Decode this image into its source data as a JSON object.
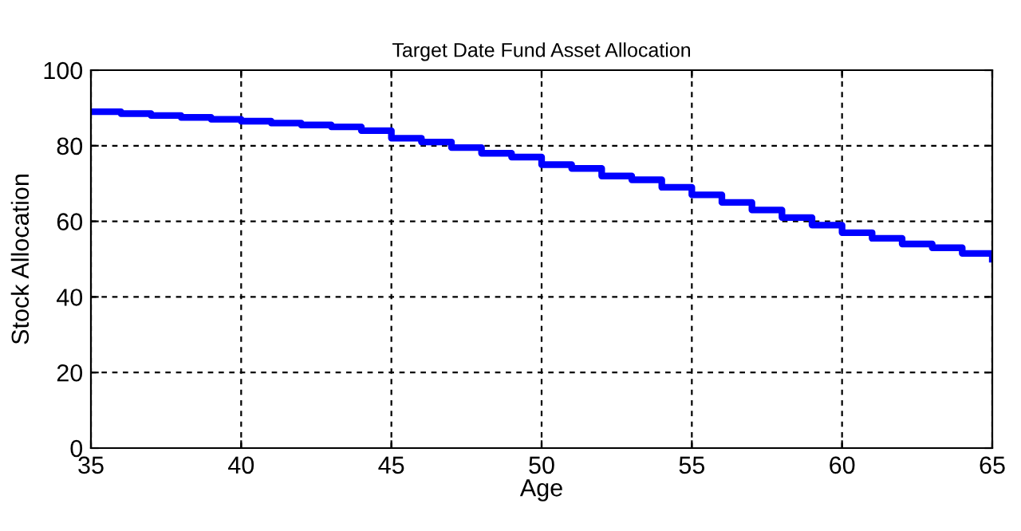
{
  "chart_data": {
    "type": "step",
    "title": "Target Date Fund Asset Allocation",
    "xlabel": "Age",
    "ylabel": "Stock Allocation",
    "x": [
      35,
      36,
      37,
      38,
      39,
      40,
      41,
      42,
      43,
      44,
      45,
      46,
      47,
      48,
      49,
      50,
      51,
      52,
      53,
      54,
      55,
      56,
      57,
      58,
      59,
      60,
      61,
      62,
      63,
      64,
      65
    ],
    "series": [
      {
        "color": "#0000ff",
        "values": [
          89,
          88.5,
          88,
          87.5,
          87,
          86.5,
          86,
          85.5,
          85,
          84,
          82,
          81,
          79.5,
          78,
          77,
          75,
          74,
          72,
          71,
          69,
          67,
          65,
          63,
          61,
          59,
          57,
          55.5,
          54,
          53,
          51.5,
          50
        ]
      }
    ],
    "xlim": [
      35,
      65
    ],
    "ylim": [
      0,
      100
    ],
    "xticks": [
      35,
      40,
      45,
      50,
      55,
      60,
      65
    ],
    "yticks": [
      0,
      20,
      40,
      60,
      80,
      100
    ],
    "grid": true,
    "line_style": "solid"
  }
}
